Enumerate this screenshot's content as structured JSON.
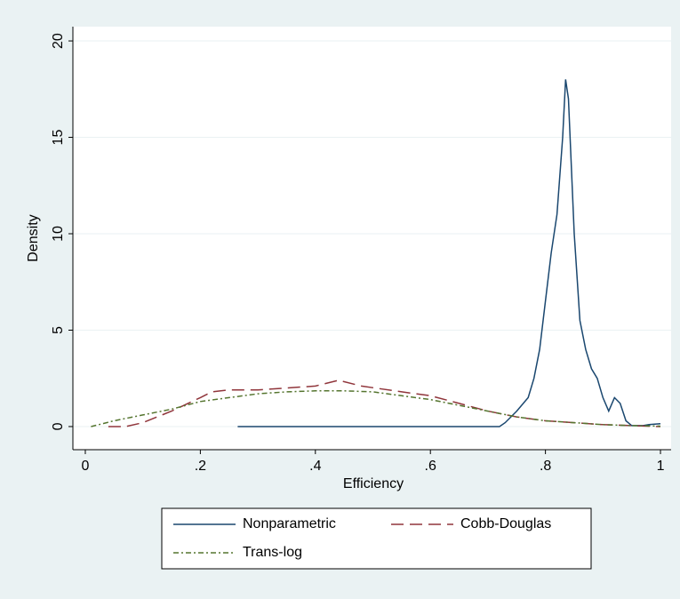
{
  "chart_data": {
    "type": "line",
    "x_label": "Efficiency",
    "y_label": "Density",
    "xlim": [
      -0.0216,
      1.0185
    ],
    "ylim": [
      -1.2,
      20.74
    ],
    "xticks": [
      0,
      {
        "value": 0.2,
        "label": ".2"
      },
      {
        "value": 0.4,
        "label": ".4"
      },
      {
        "value": 0.6,
        "label": ".6"
      },
      {
        "value": 0.8,
        "label": ".8"
      },
      1
    ],
    "yticks": [
      0,
      5,
      10,
      15,
      20
    ],
    "grid": true,
    "series": [
      {
        "name": "Nonparametric",
        "color": "#1a476f",
        "dash": "solid",
        "x": [
          0.265,
          0.72,
          0.73,
          0.75,
          0.77,
          0.78,
          0.79,
          0.8,
          0.81,
          0.82,
          0.83,
          0.835,
          0.84,
          0.85,
          0.86,
          0.87,
          0.88,
          0.89,
          0.9,
          0.91,
          0.92,
          0.93,
          0.94,
          0.95,
          0.97,
          0.98,
          1.0
        ],
        "values": [
          0,
          0,
          0.2,
          0.8,
          1.5,
          2.5,
          4,
          6.5,
          9,
          11,
          15,
          18,
          17,
          10,
          5.5,
          4,
          3,
          2.5,
          1.5,
          0.8,
          1.5,
          1.2,
          0.3,
          0.05,
          0.05,
          0.1,
          0.15
        ]
      },
      {
        "name": "Cobb-Douglas",
        "color": "#90353b",
        "dash": "dashed",
        "x": [
          0.04,
          0.07,
          0.1,
          0.15,
          0.2,
          0.22,
          0.25,
          0.3,
          0.35,
          0.4,
          0.44,
          0.48,
          0.55,
          0.6,
          0.65,
          0.7,
          0.75,
          0.8,
          0.85,
          0.9,
          0.95,
          1.0
        ],
        "values": [
          0,
          0,
          0.2,
          0.8,
          1.5,
          1.8,
          1.9,
          1.9,
          2.0,
          2.1,
          2.4,
          2.1,
          1.8,
          1.6,
          1.2,
          0.8,
          0.5,
          0.3,
          0.2,
          0.1,
          0.05,
          0
        ]
      },
      {
        "name": "Trans-log",
        "color": "#55752f",
        "dash": "dashdot",
        "x": [
          0.01,
          0.05,
          0.1,
          0.15,
          0.2,
          0.25,
          0.3,
          0.35,
          0.4,
          0.45,
          0.5,
          0.55,
          0.6,
          0.65,
          0.7,
          0.75,
          0.8,
          0.85,
          0.9,
          0.95,
          1.0
        ],
        "values": [
          0,
          0.3,
          0.6,
          0.9,
          1.3,
          1.5,
          1.7,
          1.8,
          1.85,
          1.85,
          1.8,
          1.6,
          1.4,
          1.1,
          0.8,
          0.5,
          0.3,
          0.2,
          0.1,
          0.05,
          0.02
        ]
      }
    ]
  }
}
